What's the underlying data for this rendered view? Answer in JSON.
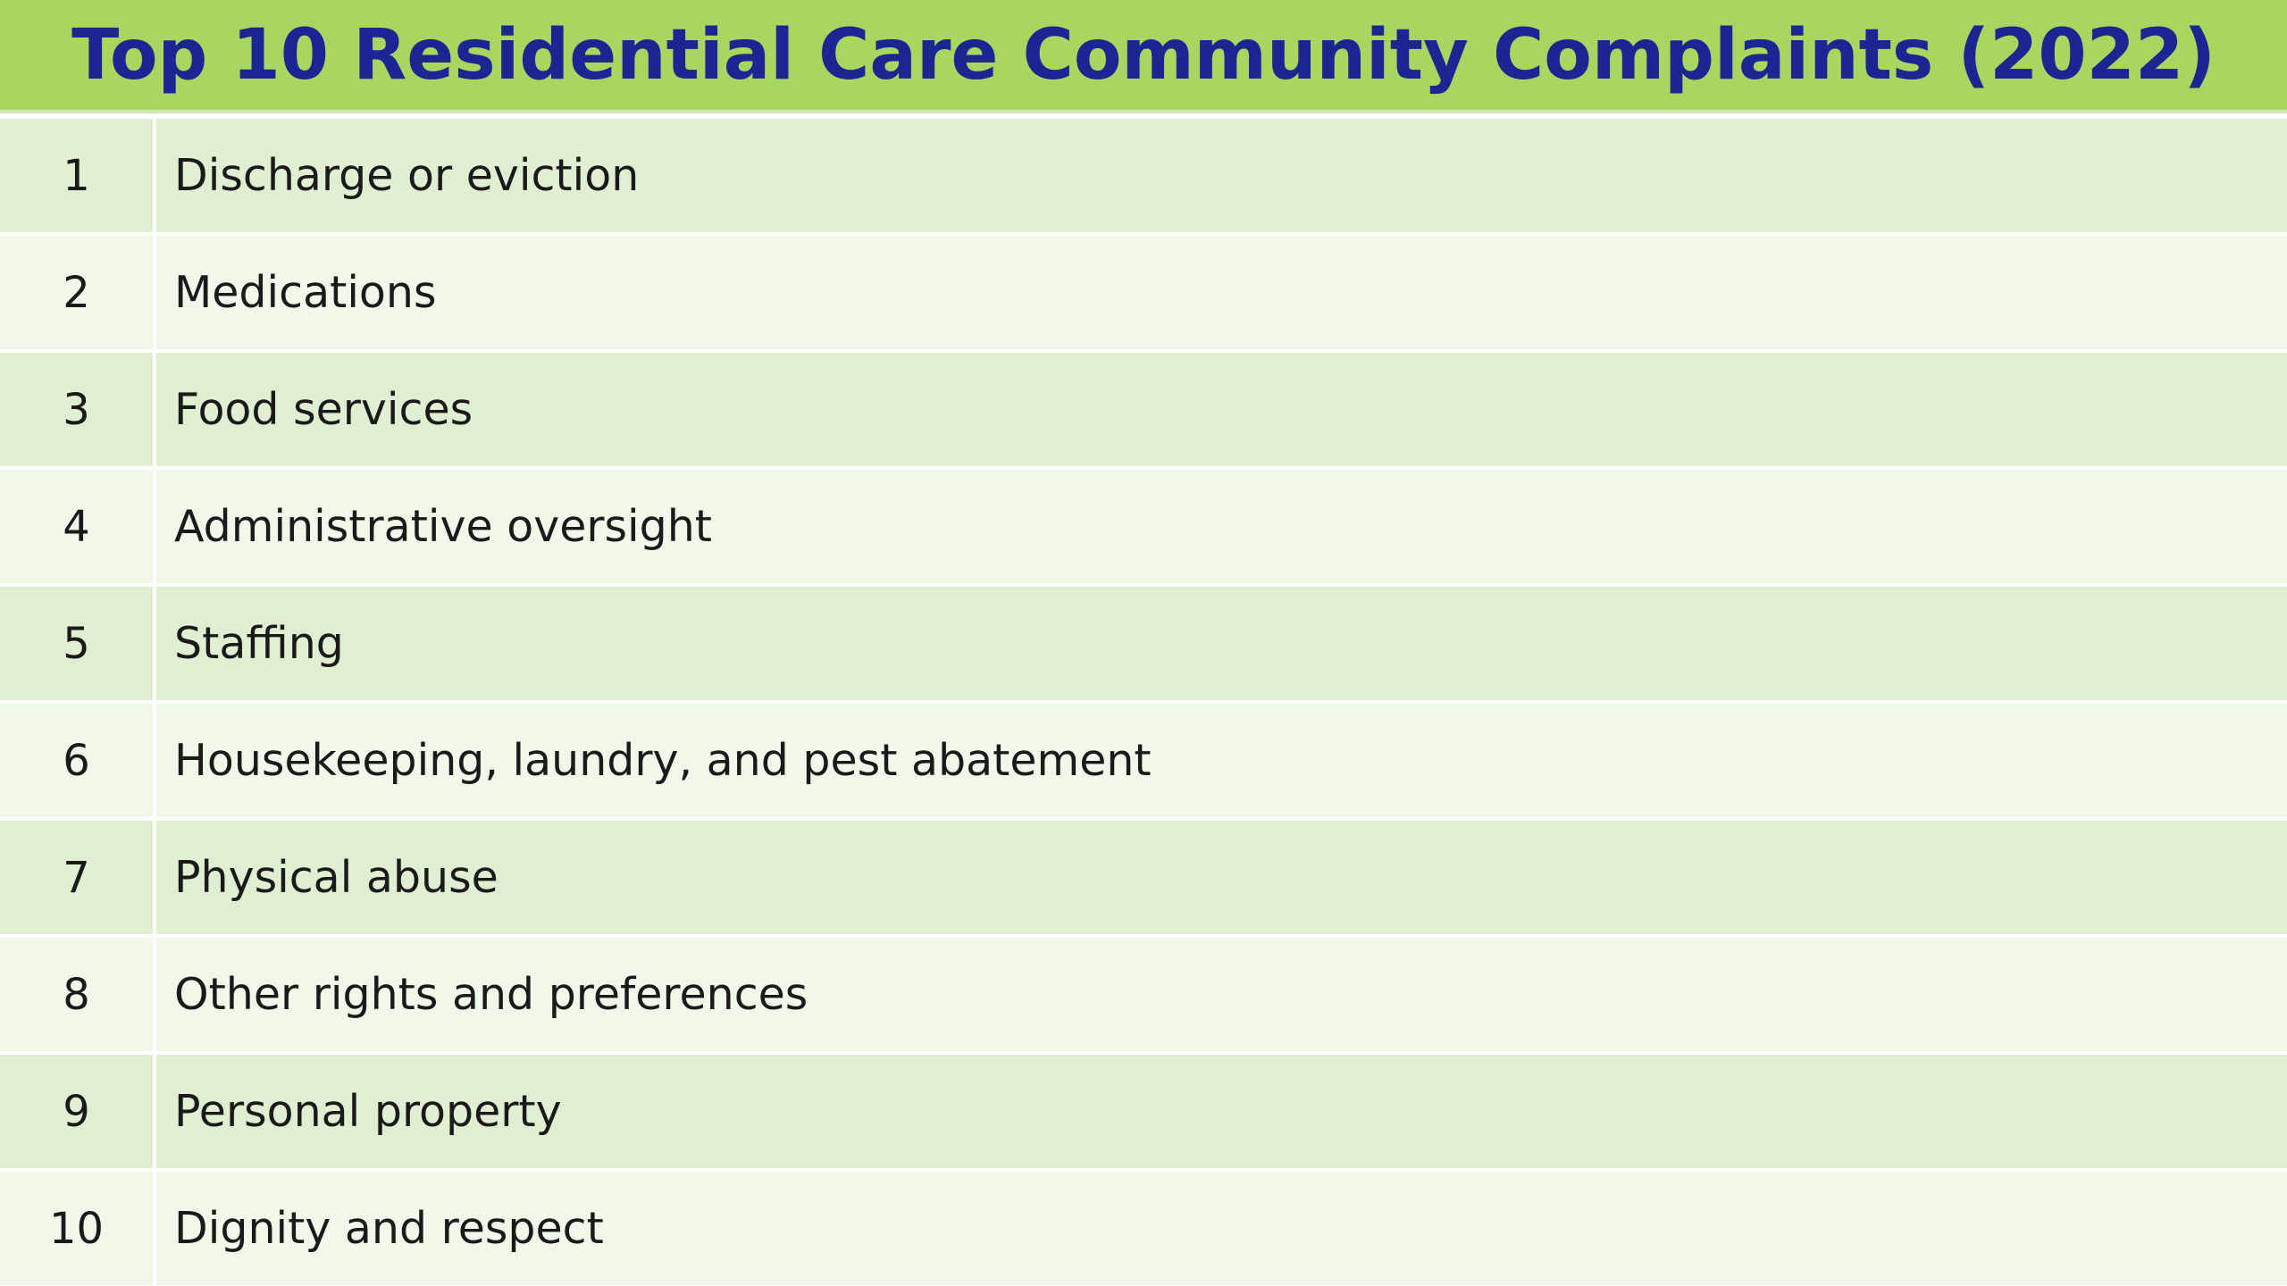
{
  "title": "Top 10 Residential Care Community Complaints (2022)",
  "colors": {
    "title_bar": "#a8d660",
    "title_text": "#1c2591",
    "row_dark": "#e0efd2",
    "row_light": "#f0f8ea"
  },
  "rows": [
    {
      "rank": "1",
      "complaint": "Discharge or eviction"
    },
    {
      "rank": "2",
      "complaint": "Medications"
    },
    {
      "rank": "3",
      "complaint": "Food services"
    },
    {
      "rank": "4",
      "complaint": "Administrative oversight"
    },
    {
      "rank": "5",
      "complaint": "Staffing"
    },
    {
      "rank": "6",
      "complaint": "Housekeeping, laundry, and pest abatement"
    },
    {
      "rank": "7",
      "complaint": "Physical abuse"
    },
    {
      "rank": "8",
      "complaint": "Other rights and preferences"
    },
    {
      "rank": "9",
      "complaint": "Personal property"
    },
    {
      "rank": "10",
      "complaint": "Dignity and respect"
    }
  ]
}
